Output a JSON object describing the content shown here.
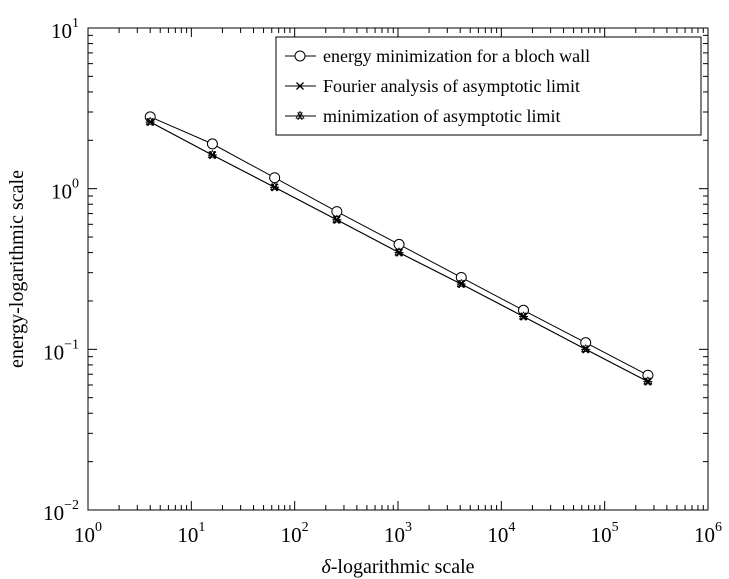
{
  "chart_data": {
    "type": "line",
    "xscale": "log",
    "yscale": "log",
    "xlim": [
      1,
      1000000
    ],
    "ylim": [
      0.01,
      10
    ],
    "xticks": [
      {
        "base": "10",
        "exp": "0"
      },
      {
        "base": "10",
        "exp": "1"
      },
      {
        "base": "10",
        "exp": "2"
      },
      {
        "base": "10",
        "exp": "3"
      },
      {
        "base": "10",
        "exp": "4"
      },
      {
        "base": "10",
        "exp": "5"
      },
      {
        "base": "10",
        "exp": "6"
      }
    ],
    "yticks": [
      {
        "base": "10",
        "exp": "−2"
      },
      {
        "base": "10",
        "exp": "−1"
      },
      {
        "base": "10",
        "exp": "0"
      },
      {
        "base": "10",
        "exp": "1"
      }
    ],
    "xlabel_symbol": "δ",
    "xlabel_rest": "-logarithmic scale",
    "ylabel": "energy-logarithmic scale",
    "legend_position": "top-right",
    "grid": false,
    "series": [
      {
        "name": "energy minimization for a bloch wall",
        "marker": "circle",
        "x": [
          4,
          16,
          64,
          256,
          1024,
          4096,
          16384,
          65536,
          262144
        ],
        "y": [
          2.8,
          1.9,
          1.17,
          0.72,
          0.45,
          0.28,
          0.175,
          0.11,
          0.069
        ]
      },
      {
        "name": "Fourier analysis of asymptotic limit",
        "marker": "x",
        "x": [
          4,
          16,
          64,
          256,
          1024,
          4096,
          16384,
          65536,
          262144
        ],
        "y": [
          2.6,
          1.62,
          1.02,
          0.64,
          0.4,
          0.255,
          0.16,
          0.1,
          0.063
        ]
      },
      {
        "name": "minimization of asymptotic limit",
        "marker": "star",
        "x": [
          4,
          16,
          64,
          256,
          1024,
          4096,
          16384,
          65536,
          262144
        ],
        "y": [
          2.6,
          1.62,
          1.02,
          0.64,
          0.4,
          0.255,
          0.16,
          0.1,
          0.063
        ]
      }
    ]
  }
}
